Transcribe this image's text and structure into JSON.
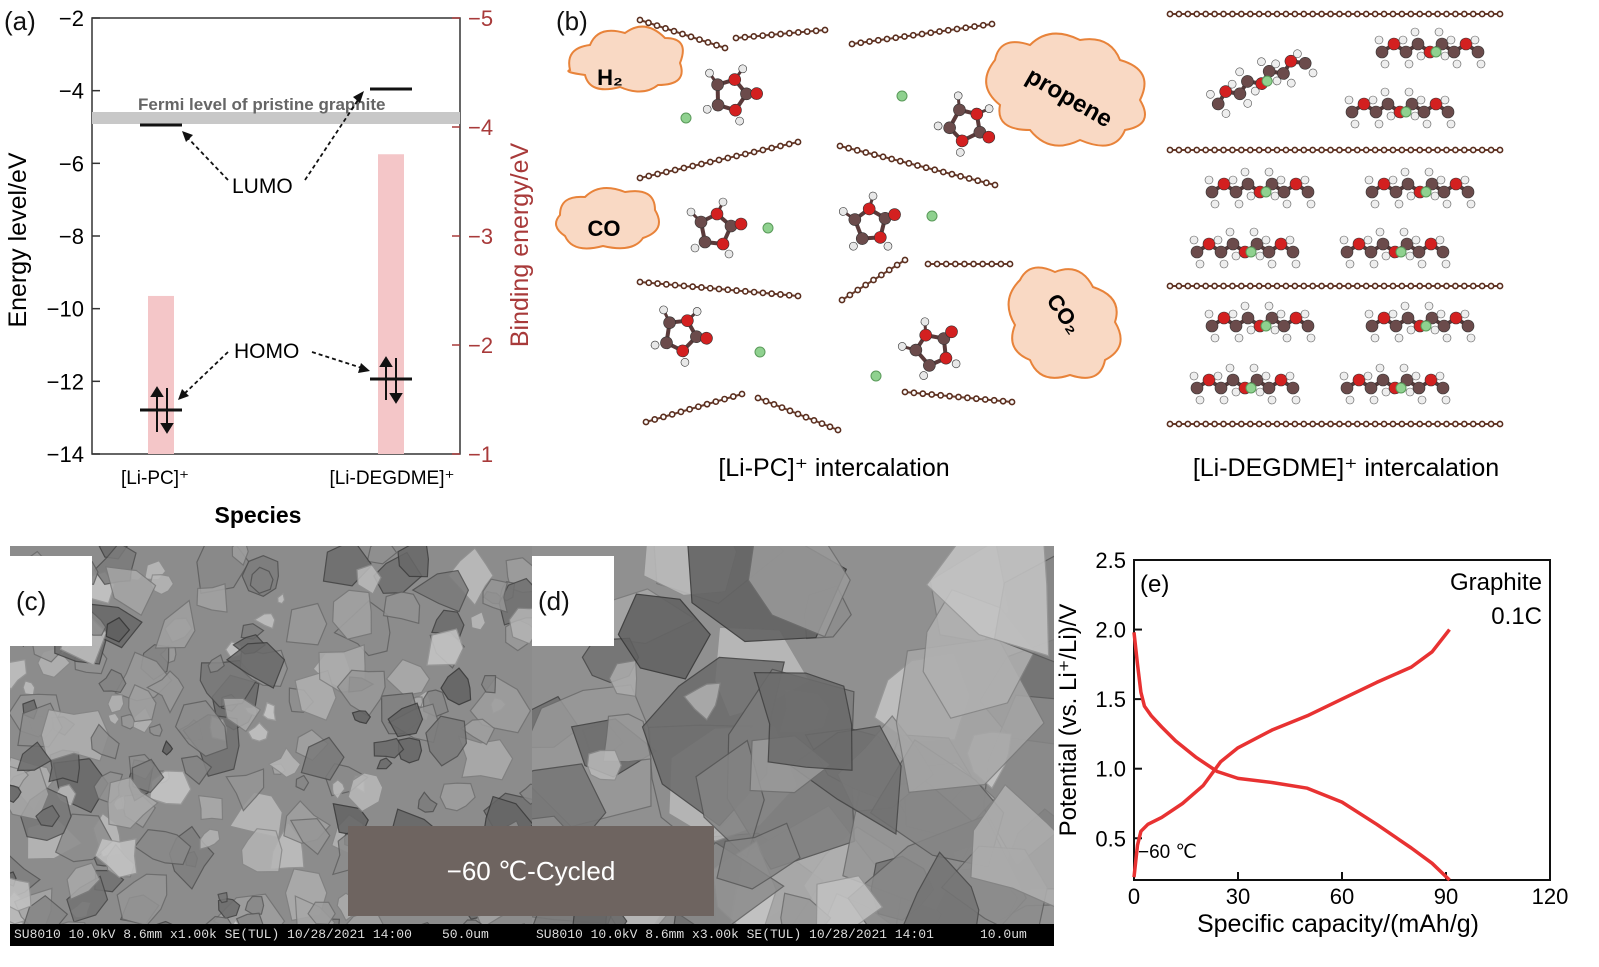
{
  "panel_a": {
    "label": "(a)",
    "ylabel_left": "Energy level/eV",
    "ylabel_right": "Binding energy/eV",
    "xlabel": "Species",
    "yticks_left": [
      "−2",
      "−4",
      "−6",
      "−8",
      "−10",
      "−12",
      "−14"
    ],
    "yticks_right": [
      "5",
      "4",
      "3",
      "2",
      "1"
    ],
    "xticks": [
      "[Li-PC]⁺",
      "[Li-DEGDME]⁺"
    ],
    "fermi_label": "Fermi level of pristine graphite",
    "lumo_label": "LUMO",
    "homo_label": "HOMO",
    "bar_color": "#f4c6c8",
    "axis_right_color": "#a83a3a"
  },
  "panel_b": {
    "label": "(b)",
    "gas_labels": [
      "H₂",
      "propene",
      "CO",
      "CO₂"
    ],
    "caption_left": "[Li-PC]⁺ intercalation",
    "caption_right": "[Li-DEGDME]⁺ intercalation",
    "cloud_color": "#f9d9c4",
    "cloud_stroke": "#e8833a"
  },
  "panel_c": {
    "label": "(c)",
    "scalebar": [
      "SU8010 10.0kV 8.6mm x1.00k SE(TUL) 10/28/2021 14:00",
      "50.0um"
    ]
  },
  "panel_d": {
    "label": "(d)",
    "scalebar": [
      "SU8010 10.0kV 8.6mm x3.00k SE(TUL) 10/28/2021 14:01",
      "10.0um"
    ]
  },
  "overlay_text": "−60 ℃-Cycled",
  "panel_e": {
    "label": "(e)",
    "legend_line1": "Graphite",
    "legend_line2": "0.1C",
    "temp_label": "−60 ℃",
    "line_color": "#e83232"
  },
  "chart_data": [
    {
      "type": "bar",
      "categories": [
        "[Li-PC]⁺",
        "[Li-DEGDME]⁺"
      ],
      "series": [
        {
          "name": "",
          "values": [
            2.45,
            3.75
          ]
        }
      ],
      "xlabel": "Species",
      "ylabel": "Binding energy/eV",
      "ylim": [
        1,
        5
      ],
      "energy_levels_eV": {
        "fermi": -4.75,
        "lumo": [
          -4.95,
          -3.95
        ],
        "homo": [
          -12.75,
          -11.85
        ]
      },
      "ylim_left": [
        -14,
        -2
      ]
    },
    {
      "type": "line",
      "xlabel": "Specific capacity/(mAh/g)",
      "ylabel": "Potential (vs. Li⁺/Li)/V",
      "xlim": [
        0,
        120
      ],
      "ylim": [
        0.2,
        2.5
      ],
      "xticks": [
        0,
        30,
        60,
        90,
        120
      ],
      "yticks": [
        0.5,
        1.0,
        1.5,
        2.0,
        2.5
      ],
      "series": [
        {
          "name": "",
          "x": [
            0,
            1,
            2,
            3,
            5,
            8,
            12,
            18,
            24,
            30,
            40,
            50,
            60,
            70,
            80,
            86,
            91
          ],
          "y": [
            1.98,
            1.75,
            1.55,
            1.45,
            1.38,
            1.3,
            1.2,
            1.08,
            0.98,
            0.93,
            0.9,
            0.86,
            0.76,
            0.6,
            0.43,
            0.32,
            0.2
          ]
        },
        {
          "name": "",
          "x": [
            0,
            1,
            2,
            4,
            8,
            14,
            20,
            25,
            30,
            40,
            50,
            60,
            70,
            80,
            86,
            91
          ],
          "y": [
            0.22,
            0.45,
            0.55,
            0.6,
            0.65,
            0.75,
            0.88,
            1.05,
            1.15,
            1.28,
            1.38,
            1.5,
            1.62,
            1.73,
            1.84,
            2.0
          ]
        }
      ]
    }
  ]
}
